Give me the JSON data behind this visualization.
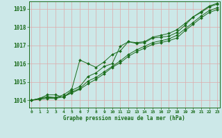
{
  "bg_color": "#cce8e8",
  "grid_color": "#aacccc",
  "line_color": "#1a6b1a",
  "xlabel": "Graphe pression niveau de la mer (hPa)",
  "ylim": [
    1013.6,
    1019.4
  ],
  "xlim": [
    -0.3,
    23.3
  ],
  "yticks": [
    1014,
    1015,
    1016,
    1017,
    1018,
    1019
  ],
  "xticks": [
    0,
    1,
    2,
    3,
    4,
    5,
    6,
    7,
    8,
    9,
    10,
    11,
    12,
    13,
    14,
    15,
    16,
    17,
    18,
    19,
    20,
    21,
    22,
    23
  ],
  "series": [
    [
      1014.0,
      1014.1,
      1014.3,
      1014.3,
      1014.15,
      1014.55,
      1014.75,
      1015.3,
      1015.5,
      1015.85,
      1016.0,
      1016.95,
      1017.2,
      1017.1,
      1017.15,
      1017.4,
      1017.45,
      1017.5,
      1017.7,
      1018.1,
      1018.55,
      1018.8,
      1019.1,
      1019.25
    ],
    [
      1014.0,
      1014.1,
      1014.15,
      1014.15,
      1014.2,
      1014.45,
      1014.65,
      1015.05,
      1015.25,
      1015.55,
      1015.85,
      1016.15,
      1016.5,
      1016.75,
      1016.95,
      1017.15,
      1017.25,
      1017.35,
      1017.55,
      1017.9,
      1018.25,
      1018.6,
      1018.9,
      1019.05
    ],
    [
      1014.0,
      1014.05,
      1014.1,
      1014.1,
      1014.2,
      1014.4,
      1014.6,
      1014.9,
      1015.15,
      1015.45,
      1015.8,
      1016.05,
      1016.4,
      1016.65,
      1016.85,
      1017.05,
      1017.15,
      1017.25,
      1017.4,
      1017.8,
      1018.15,
      1018.5,
      1018.8,
      1018.95
    ],
    [
      1014.0,
      1014.1,
      1014.2,
      1014.15,
      1014.3,
      1014.6,
      1016.2,
      1016.0,
      1015.8,
      1016.1,
      1016.5,
      1016.7,
      1017.2,
      1017.15,
      1017.2,
      1017.45,
      1017.55,
      1017.65,
      1017.85,
      1018.2,
      1018.55,
      1018.85,
      1019.15,
      1019.3
    ]
  ]
}
